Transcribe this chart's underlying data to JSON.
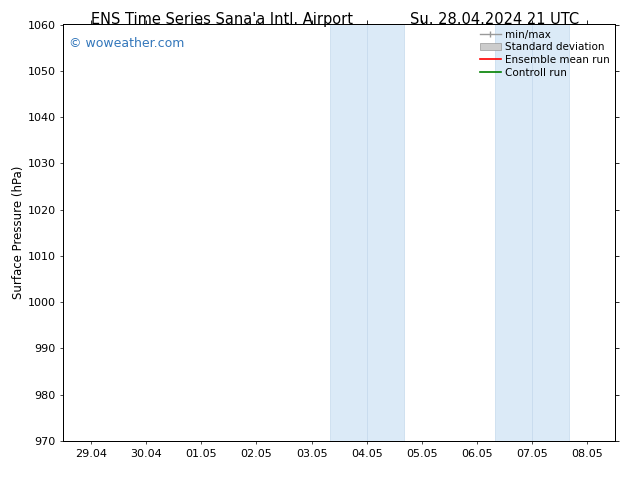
{
  "title_left": "ENS Time Series Sana'a Intl. Airport",
  "title_right": "Su. 28.04.2024 21 UTC",
  "ylabel": "Surface Pressure (hPa)",
  "ylim": [
    970,
    1060
  ],
  "yticks": [
    970,
    980,
    990,
    1000,
    1010,
    1020,
    1030,
    1040,
    1050,
    1060
  ],
  "xtick_labels": [
    "29.04",
    "30.04",
    "01.05",
    "02.05",
    "03.05",
    "04.05",
    "05.05",
    "06.05",
    "07.05",
    "08.05"
  ],
  "x_positions": [
    0,
    1,
    2,
    3,
    4,
    5,
    6,
    7,
    8,
    9
  ],
  "shaded_regions": [
    {
      "x_start": 4.33,
      "x_end": 5.0
    },
    {
      "x_start": 5.0,
      "x_end": 5.67
    },
    {
      "x_start": 7.33,
      "x_end": 8.0
    },
    {
      "x_start": 8.0,
      "x_end": 8.67
    }
  ],
  "shaded_color": "#dbeaf7",
  "shaded_edge_color": "#c5d9ed",
  "background_color": "#ffffff",
  "plot_bg_color": "#ffffff",
  "watermark_text": "© woweather.com",
  "watermark_color": "#3377bb",
  "legend_items": [
    {
      "label": "min/max",
      "color": "#999999",
      "type": "line_caps"
    },
    {
      "label": "Standard deviation",
      "color": "#cccccc",
      "type": "bar"
    },
    {
      "label": "Ensemble mean run",
      "color": "#ff0000",
      "type": "line"
    },
    {
      "label": "Controll run",
      "color": "#008000",
      "type": "line"
    }
  ],
  "title_fontsize": 10.5,
  "tick_fontsize": 8,
  "ylabel_fontsize": 8.5,
  "watermark_fontsize": 9,
  "legend_fontsize": 7.5,
  "x_min": -0.5,
  "x_max": 9.5
}
